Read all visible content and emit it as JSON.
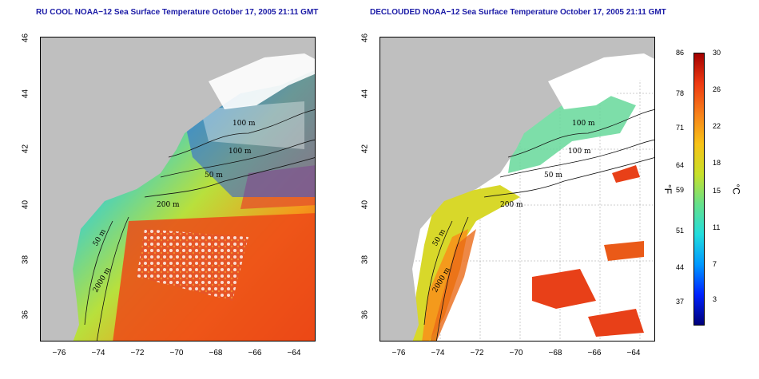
{
  "panels": {
    "left": {
      "title": "RU COOL NOAA−12 Sea Surface Temperature October 17, 2005 21:11 GMT"
    },
    "right": {
      "title": "DECLOUDED NOAA−12 Sea Surface Temperature October 17, 2005 21:11 GMT"
    }
  },
  "axes": {
    "lat_ticks": [
      "46",
      "44",
      "42",
      "40",
      "38",
      "36"
    ],
    "lon_ticks": [
      "−76",
      "−74",
      "−72",
      "−70",
      "−68",
      "−66",
      "−64"
    ],
    "lat_range": [
      35,
      46
    ],
    "lon_range": [
      -77,
      -63
    ]
  },
  "contour_labels": {
    "left": [
      "100 m",
      "100 m",
      "50 m",
      "200 m",
      "50 m",
      "2000 m"
    ],
    "right": [
      "100 m",
      "100 m",
      "50 m",
      "200 m",
      "50 m",
      "2000 m"
    ]
  },
  "colorbar": {
    "fahrenheit_ticks": [
      "86",
      "78",
      "71",
      "64",
      "59",
      "51",
      "44",
      "37"
    ],
    "celsius_ticks": [
      "30",
      "26",
      "22",
      "18",
      "15",
      "11",
      "7",
      "3"
    ],
    "fahrenheit_unit": "°F",
    "celsius_unit": "°C",
    "colors": [
      "#00007a",
      "#0022ff",
      "#0099ff",
      "#22dddd",
      "#66e08a",
      "#c8e02a",
      "#f7c217",
      "#f7801a",
      "#ee3a12",
      "#a30000"
    ]
  },
  "colors": {
    "land": "#bfbfbf",
    "cloud": "#ffffff",
    "title": "#1a1aa6"
  }
}
